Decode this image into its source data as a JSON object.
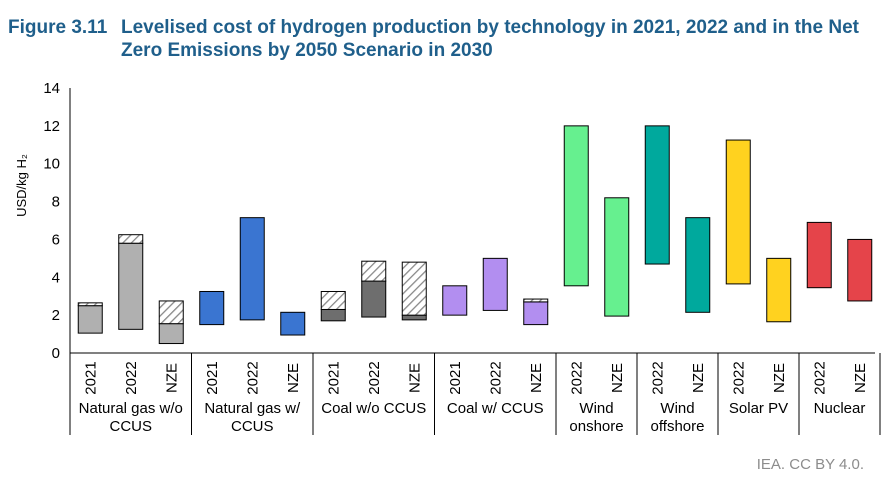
{
  "figure": {
    "number": "Figure 3.11",
    "title": "Levelised cost of hydrogen production by technology in 2021, 2022 and in the Net Zero Emissions by 2050 Scenario in 2030",
    "credit": "IEA. CC BY 4.0."
  },
  "colors": {
    "natural_gas": "#b0b0b0",
    "natural_gas_ccus": "#3a75d1",
    "coal": "#6e6e6e",
    "coal_ccus": "#b28ef0",
    "wind_onshore": "#66f08f",
    "wind_offshore": "#00a99d",
    "solar_pv": "#ffd21f",
    "nuclear": "#e5444a",
    "hatch": "#888888"
  },
  "chart_data": {
    "type": "bar",
    "subtype": "floating range bars",
    "ylabel": "USD/kg H₂",
    "ylim": [
      0,
      14
    ],
    "yticks": [
      0,
      2,
      4,
      6,
      8,
      10,
      12,
      14
    ],
    "grid": false,
    "groups": [
      {
        "label": "Natural gas w/o CCUS",
        "label_lines": [
          "Natural gas w/o",
          "CCUS"
        ],
        "color_key": "natural_gas",
        "bars": [
          {
            "label": "2021",
            "low": 1.05,
            "mid": 2.5,
            "high": 2.65
          },
          {
            "label": "2022",
            "low": 1.25,
            "mid": 5.8,
            "high": 6.25
          },
          {
            "label": "NZE",
            "low": 0.5,
            "mid": 1.55,
            "high": 2.75
          }
        ]
      },
      {
        "label": "Natural gas w/ CCUS",
        "label_lines": [
          "Natural gas w/",
          "CCUS"
        ],
        "color_key": "natural_gas_ccus",
        "bars": [
          {
            "label": "2021",
            "low": 1.5,
            "mid": 3.25,
            "high": 3.25
          },
          {
            "label": "2022",
            "low": 1.75,
            "mid": 7.15,
            "high": 7.15
          },
          {
            "label": "NZE",
            "low": 0.95,
            "mid": 2.15,
            "high": 2.15
          }
        ]
      },
      {
        "label": "Coal w/o CCUS",
        "label_lines": [
          "Coal w/o CCUS"
        ],
        "color_key": "coal",
        "bars": [
          {
            "label": "2021",
            "low": 1.7,
            "mid": 2.3,
            "high": 3.25
          },
          {
            "label": "2022",
            "low": 1.9,
            "mid": 3.8,
            "high": 4.85
          },
          {
            "label": "NZE",
            "low": 1.75,
            "mid": 2.0,
            "high": 4.8
          }
        ]
      },
      {
        "label": "Coal w/ CCUS",
        "label_lines": [
          "Coal w/ CCUS"
        ],
        "color_key": "coal_ccus",
        "bars": [
          {
            "label": "2021",
            "low": 2.0,
            "mid": 3.55,
            "high": 3.55
          },
          {
            "label": "2022",
            "low": 2.25,
            "mid": 5.0,
            "high": 5.0
          },
          {
            "label": "NZE",
            "low": 1.5,
            "mid": 2.7,
            "high": 2.85
          }
        ]
      },
      {
        "label": "Wind onshore",
        "label_lines": [
          "Wind",
          "onshore"
        ],
        "color_key": "wind_onshore",
        "bars": [
          {
            "label": "2022",
            "low": 3.55,
            "mid": 12.0,
            "high": 12.0
          },
          {
            "label": "NZE",
            "low": 1.95,
            "mid": 8.2,
            "high": 8.2
          }
        ]
      },
      {
        "label": "Wind offshore",
        "label_lines": [
          "Wind",
          "offshore"
        ],
        "color_key": "wind_offshore",
        "bars": [
          {
            "label": "2022",
            "low": 4.7,
            "mid": 12.0,
            "high": 12.0
          },
          {
            "label": "NZE",
            "low": 2.15,
            "mid": 7.15,
            "high": 7.15
          }
        ]
      },
      {
        "label": "Solar PV",
        "label_lines": [
          "Solar PV"
        ],
        "color_key": "solar_pv",
        "bars": [
          {
            "label": "2022",
            "low": 3.65,
            "mid": 11.25,
            "high": 11.25
          },
          {
            "label": "NZE",
            "low": 1.65,
            "mid": 5.0,
            "high": 5.0
          }
        ]
      },
      {
        "label": "Nuclear",
        "label_lines": [
          "Nuclear"
        ],
        "color_key": "nuclear",
        "bars": [
          {
            "label": "2022",
            "low": 3.45,
            "mid": 6.9,
            "high": 6.9
          },
          {
            "label": "NZE",
            "low": 2.75,
            "mid": 6.0,
            "high": 6.0
          }
        ]
      }
    ]
  }
}
